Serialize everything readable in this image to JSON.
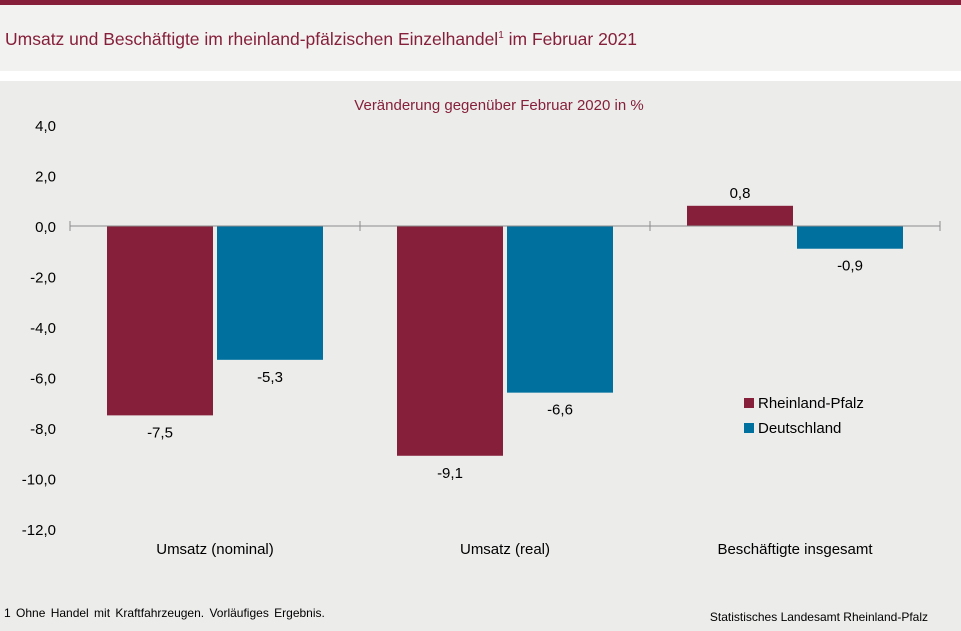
{
  "header": {
    "title": "Umsatz und Beschäftigte im rheinland-pfälzischen Einzelhandel",
    "title_sup": "1",
    "title_suffix": " im Februar 2021"
  },
  "chart_data": {
    "type": "bar",
    "subtitle": "Veränderung  gegenüber  Februar 2020 in %",
    "categories": [
      "Umsatz (nominal)",
      "Umsatz (real)",
      "Beschäftigte insgesamt"
    ],
    "series": [
      {
        "name": "Rheinland-Pfalz",
        "values": [
          -7.5,
          -9.1,
          0.8
        ],
        "labels": [
          "-7,5",
          "-9,1",
          "0,8"
        ],
        "color": "#86203a"
      },
      {
        "name": "Deutschland",
        "values": [
          -5.3,
          -6.6,
          -0.9
        ],
        "labels": [
          "-5,3",
          "-6,6",
          "-0,9"
        ],
        "color": "#00709f"
      }
    ],
    "ylim": [
      -12,
      4
    ],
    "yticks": [
      4,
      2,
      0,
      -2,
      -4,
      -6,
      -8,
      -10,
      -12
    ],
    "ytick_labels": [
      "4,0",
      "2,0",
      "0,0",
      "-2,0",
      "-4,0",
      "-6,0",
      "-8,0",
      "-10,0",
      "-12,0"
    ],
    "legend_position": "right"
  },
  "footnote": "1 Ohne Handel mit Kraftfahrzeugen. Vorläufiges Ergebnis.",
  "source": "Statistisches Landesamt Rheinland-Pfalz"
}
